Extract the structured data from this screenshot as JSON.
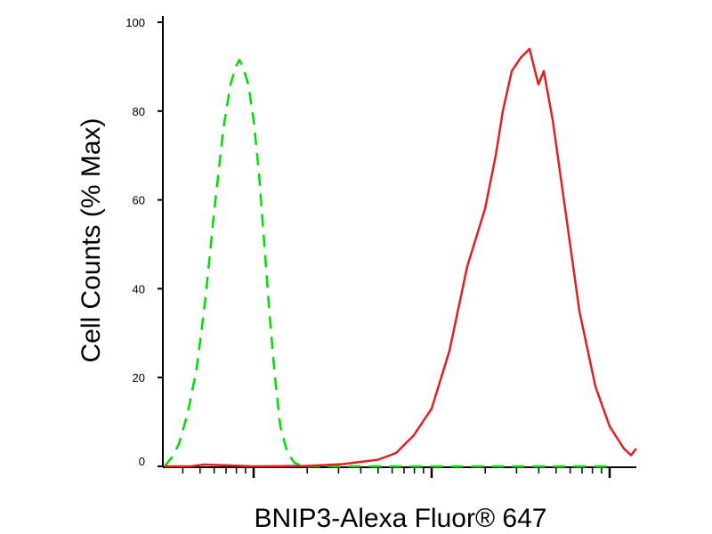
{
  "chart_data": {
    "type": "area",
    "title": "",
    "xlabel": "BNIP3-Alexa Fluor® 647",
    "ylabel": "Cell Counts (% Max)",
    "x_scale": "log",
    "ylim": [
      0,
      100
    ],
    "y_ticks": [
      0,
      20,
      40,
      60,
      80,
      100
    ],
    "grid": false,
    "legend": "none",
    "series": [
      {
        "line_style": "dashed",
        "color": "#00dd00",
        "points": [
          [
            0.0,
            0
          ],
          [
            0.04,
            2
          ],
          [
            0.08,
            5
          ],
          [
            0.13,
            12
          ],
          [
            0.18,
            22
          ],
          [
            0.23,
            38
          ],
          [
            0.28,
            58
          ],
          [
            0.33,
            76
          ],
          [
            0.37,
            86
          ],
          [
            0.4,
            90
          ],
          [
            0.42,
            91.5
          ],
          [
            0.44,
            90
          ],
          [
            0.47,
            86
          ],
          [
            0.5,
            78
          ],
          [
            0.53,
            66
          ],
          [
            0.56,
            50
          ],
          [
            0.59,
            34
          ],
          [
            0.62,
            20
          ],
          [
            0.65,
            9
          ],
          [
            0.69,
            3
          ],
          [
            0.73,
            0.8
          ],
          [
            0.76,
            0.3
          ],
          [
            0.8,
            0
          ],
          [
            2.5,
            0
          ]
        ]
      },
      {
        "line_style": "solid",
        "color": "#e02020",
        "points": [
          [
            0.0,
            0
          ],
          [
            0.15,
            0
          ],
          [
            0.22,
            0.4
          ],
          [
            0.3,
            0.3
          ],
          [
            0.5,
            0
          ],
          [
            0.8,
            0.1
          ],
          [
            1.0,
            0.5
          ],
          [
            1.2,
            1.5
          ],
          [
            1.3,
            3
          ],
          [
            1.4,
            7
          ],
          [
            1.5,
            13
          ],
          [
            1.6,
            26
          ],
          [
            1.7,
            45
          ],
          [
            1.8,
            58
          ],
          [
            1.86,
            70
          ],
          [
            1.9,
            80
          ],
          [
            1.95,
            89
          ],
          [
            2.0,
            92
          ],
          [
            2.05,
            94
          ],
          [
            2.1,
            86
          ],
          [
            2.13,
            89
          ],
          [
            2.18,
            78
          ],
          [
            2.25,
            58
          ],
          [
            2.33,
            35
          ],
          [
            2.42,
            18
          ],
          [
            2.5,
            9
          ],
          [
            2.58,
            4
          ],
          [
            2.62,
            2.5
          ],
          [
            2.65,
            4
          ]
        ]
      }
    ]
  }
}
